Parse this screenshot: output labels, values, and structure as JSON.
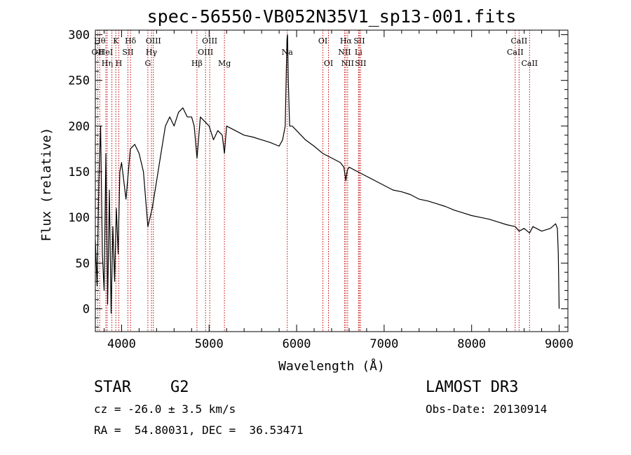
{
  "chart_data": {
    "type": "line",
    "title": "spec-56550-VB052N35V1_sp13-001.fits",
    "xlabel": "Wavelength (Å)",
    "ylabel": "Flux (relative)",
    "xlim": [
      3700,
      9100
    ],
    "ylim": [
      -25,
      305
    ],
    "xticks": [
      4000,
      5000,
      6000,
      7000,
      8000,
      9000
    ],
    "yticks": [
      0,
      50,
      100,
      150,
      200,
      250,
      300
    ],
    "spectrum": {
      "x": [
        3700,
        3720,
        3740,
        3760,
        3780,
        3800,
        3820,
        3840,
        3860,
        3880,
        3900,
        3920,
        3940,
        3960,
        3980,
        4000,
        4050,
        4100,
        4150,
        4200,
        4250,
        4300,
        4350,
        4400,
        4450,
        4500,
        4550,
        4600,
        4650,
        4700,
        4750,
        4800,
        4830,
        4862,
        4900,
        4950,
        5000,
        5050,
        5100,
        5150,
        5175,
        5200,
        5300,
        5400,
        5500,
        5600,
        5700,
        5800,
        5840,
        5870,
        5880,
        5890,
        5896,
        5905,
        5920,
        5950,
        6000,
        6100,
        6200,
        6300,
        6400,
        6500,
        6540,
        6563,
        6580,
        6600,
        6700,
        6800,
        6900,
        7000,
        7100,
        7200,
        7300,
        7400,
        7500,
        7600,
        7700,
        7800,
        7900,
        8000,
        8100,
        8200,
        8300,
        8400,
        8498,
        8542,
        8600,
        8662,
        8700,
        8800,
        8900,
        8960,
        8980,
        8990,
        9000
      ],
      "y": [
        75,
        25,
        140,
        200,
        60,
        20,
        170,
        5,
        130,
        -5,
        90,
        30,
        110,
        60,
        150,
        160,
        120,
        175,
        180,
        170,
        150,
        90,
        110,
        140,
        170,
        200,
        210,
        200,
        215,
        220,
        210,
        210,
        200,
        165,
        210,
        205,
        200,
        185,
        195,
        190,
        170,
        200,
        195,
        190,
        188,
        185,
        182,
        178,
        185,
        200,
        250,
        295,
        300,
        250,
        200,
        200,
        195,
        185,
        178,
        170,
        165,
        160,
        155,
        140,
        152,
        155,
        150,
        145,
        140,
        135,
        130,
        128,
        125,
        120,
        118,
        115,
        112,
        108,
        105,
        102,
        100,
        98,
        95,
        92,
        90,
        85,
        88,
        83,
        90,
        85,
        88,
        93,
        88,
        60,
        0
      ]
    },
    "lines": [
      {
        "wl": 3727,
        "label": "OII",
        "row": 1
      },
      {
        "wl": 3750,
        "label": "Hθ",
        "row": 0
      },
      {
        "wl": 3820,
        "label": "HeI",
        "row": 1
      },
      {
        "wl": 3835,
        "label": "Hη",
        "row": 2
      },
      {
        "wl": 3889,
        "label": "",
        "row": 0
      },
      {
        "wl": 3934,
        "label": "K",
        "row": 0
      },
      {
        "wl": 3968,
        "label": "H",
        "row": 2
      },
      {
        "wl": 4072,
        "label": "SII",
        "row": 1
      },
      {
        "wl": 4102,
        "label": "Hδ",
        "row": 0
      },
      {
        "wl": 4300,
        "label": "G",
        "row": 2
      },
      {
        "wl": 4341,
        "label": "Hγ",
        "row": 1
      },
      {
        "wl": 4363,
        "label": "OIII",
        "row": 0
      },
      {
        "wl": 4861,
        "label": "Hβ",
        "row": 2
      },
      {
        "wl": 4959,
        "label": "OIII",
        "row": 1
      },
      {
        "wl": 5007,
        "label": "OIII",
        "row": 0
      },
      {
        "wl": 5175,
        "label": "Mg",
        "row": 2
      },
      {
        "wl": 5893,
        "label": "Na",
        "row": 1
      },
      {
        "wl": 6300,
        "label": "OI",
        "row": 0
      },
      {
        "wl": 6364,
        "label": "OI",
        "row": 2
      },
      {
        "wl": 6548,
        "label": "NII",
        "row": 1
      },
      {
        "wl": 6563,
        "label": "Hα",
        "row": 0
      },
      {
        "wl": 6583,
        "label": "NII",
        "row": 2
      },
      {
        "wl": 6707,
        "label": "Li",
        "row": 1
      },
      {
        "wl": 6716,
        "label": "SII",
        "row": 0
      },
      {
        "wl": 6731,
        "label": "SII",
        "row": 2
      },
      {
        "wl": 8498,
        "label": "CaII",
        "row": 1
      },
      {
        "wl": 8542,
        "label": "CaII",
        "row": 0
      },
      {
        "wl": 8662,
        "label": "CaII",
        "row": 2
      }
    ]
  },
  "info": {
    "class_label": "STAR",
    "subclass_label": "G2",
    "survey_label": "LAMOST DR3",
    "redshift_text": "cz = -26.0 ± 3.5 km/s",
    "obs_date_text": "Obs-Date: 20130914",
    "coords_text": "RA =  54.80031, DEC =  36.53471"
  }
}
